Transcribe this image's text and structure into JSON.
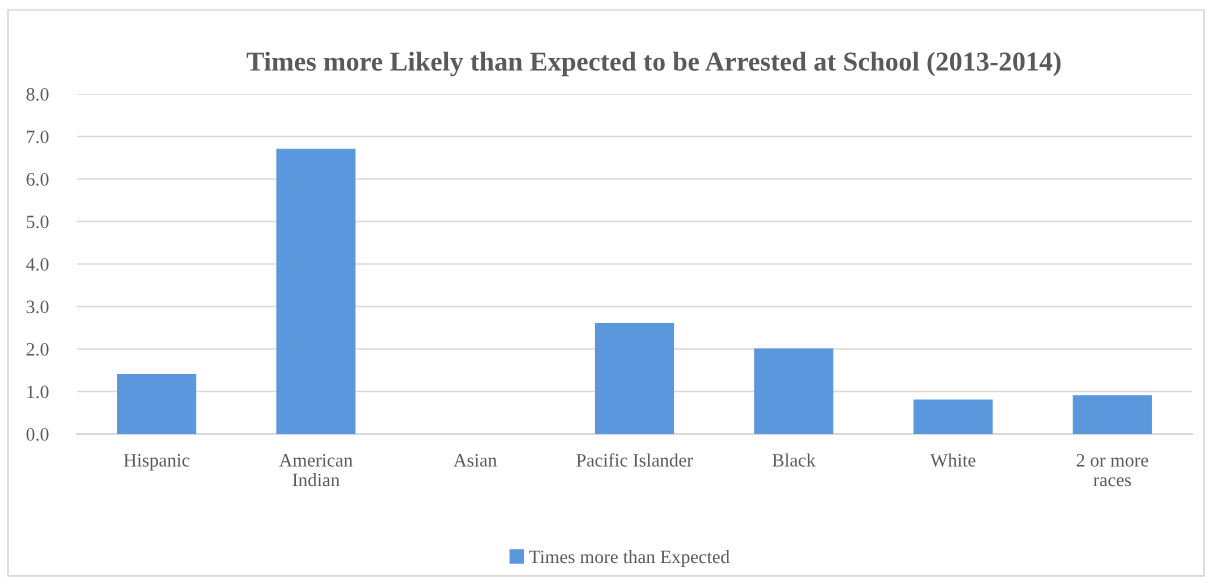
{
  "chart_data": {
    "type": "bar",
    "title": "Times more Likely than Expected to be Arrested at School (2013-2014)",
    "categories": [
      "Hispanic",
      "American\nIndian",
      "Asian",
      "Pacific Islander",
      "Black",
      "White",
      "2 or more\nraces"
    ],
    "series": [
      {
        "name": "Times more than Expected",
        "color": "#5b97dc",
        "values": [
          1.4,
          6.7,
          null,
          2.6,
          2.0,
          0.8,
          0.9
        ]
      }
    ],
    "ylim": [
      0,
      8
    ],
    "yticks": [
      {
        "value": 0,
        "label": "0.0"
      },
      {
        "value": 1,
        "label": "1.0"
      },
      {
        "value": 2,
        "label": "2.0"
      },
      {
        "value": 3,
        "label": "3.0"
      },
      {
        "value": 4,
        "label": "4.0"
      },
      {
        "value": 5,
        "label": "5.0"
      },
      {
        "value": 6,
        "label": "6.0"
      },
      {
        "value": 7,
        "label": "7.0"
      },
      {
        "value": 8,
        "label": "8.0"
      }
    ],
    "grid": "y",
    "legend": "bottom"
  }
}
